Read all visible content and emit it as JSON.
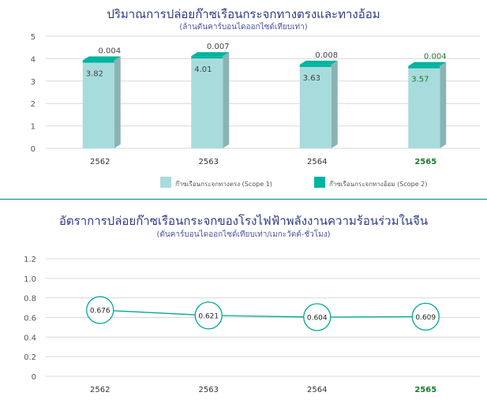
{
  "chart_data": [
    {
      "type": "bar",
      "stacked": true,
      "title": "ปริมาณการปล่อยก๊าซเรือนกระจกทางตรงและทางอ้อม",
      "subtitle": "(ล้านตันคาร์บอนไดออกไซด์เทียบเท่า)",
      "categories": [
        "2562",
        "2563",
        "2564",
        "2565"
      ],
      "ylim": [
        0,
        5
      ],
      "yticks": [
        0,
        1,
        2,
        3,
        4,
        5
      ],
      "grid": true,
      "legend_position": "bottom",
      "series": [
        {
          "name": "ก๊าซเรือนกระจกทางตรง (Scope 1)",
          "values": [
            3.82,
            4.01,
            3.63,
            3.57
          ],
          "labels": [
            "3.82",
            "4.01",
            "3.63",
            "3.57"
          ],
          "color": "#a8dcdc"
        },
        {
          "name": "ก๊าซเรือนกระจกทางอ้อม (Scope 2)",
          "values": [
            0.004,
            0.007,
            0.008,
            0.004
          ],
          "labels": [
            "0.004",
            "0.007",
            "0.008",
            "0.004"
          ],
          "color": "#00b3a0"
        }
      ],
      "highlight_category_color": "#1b7a2f"
    },
    {
      "type": "line",
      "title": "อัตราการปล่อยก๊าซเรือนกระจกของโรงไฟฟ้าพลังงานความร้อนร่วมในจีน",
      "subtitle": "(ตันคาร์บอนไดออกไซด์เทียบเท่า/เมกะวัตต์-ชั่วโมง)",
      "x": [
        "2562",
        "2563",
        "2564",
        "2565"
      ],
      "ylim": [
        0,
        1.2
      ],
      "yticks": [
        "0",
        "0.2",
        "0.4",
        "0.6",
        "0.8",
        "1.0",
        "1.2"
      ],
      "grid": true,
      "series": [
        {
          "values": [
            0.676,
            0.621,
            0.604,
            0.609
          ],
          "labels": [
            "0.676",
            "0.621",
            "0.604",
            "0.609"
          ],
          "color": "#00a896"
        }
      ],
      "highlight_category_color": "#1b7a2f"
    }
  ]
}
